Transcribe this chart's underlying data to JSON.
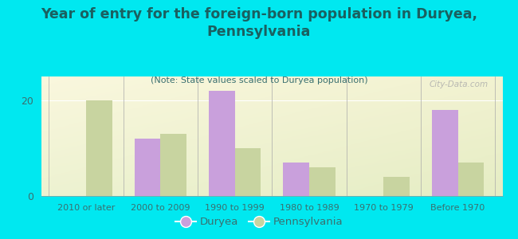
{
  "title": "Year of entry for the foreign-born population in Duryea,\nPennsylvania",
  "subtitle": "(Note: State values scaled to Duryea population)",
  "categories": [
    "2010 or later",
    "2000 to 2009",
    "1990 to 1999",
    "1980 to 1989",
    "1970 to 1979",
    "Before 1970"
  ],
  "duryea_values": [
    0,
    12,
    22,
    7,
    0,
    18
  ],
  "pa_values": [
    20,
    13,
    10,
    6,
    4,
    7
  ],
  "duryea_color": "#c9a0dc",
  "pa_color": "#c8d4a0",
  "background_outer": "#00e8f0",
  "bar_width": 0.35,
  "ylim": [
    0,
    25
  ],
  "yticks": [
    0,
    20
  ],
  "title_fontsize": 12.5,
  "subtitle_fontsize": 8,
  "title_color": "#1a6060",
  "subtitle_color": "#3a7070",
  "legend_labels": [
    "Duryea",
    "Pennsylvania"
  ],
  "watermark": "City-Data.com",
  "tick_color": "#3a7070",
  "tick_fontsize": 8
}
